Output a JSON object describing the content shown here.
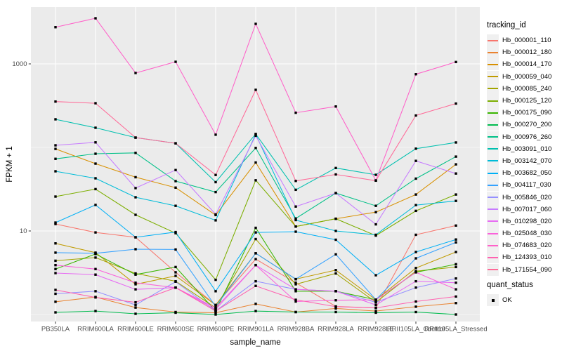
{
  "figure": {
    "panel_bg": "#EBEBEB",
    "grid_color": "#FFFFFF",
    "tick_color": "#333333",
    "tick_text_color": "#4D4D4D",
    "point_color": "#000000"
  },
  "axes": {
    "x": {
      "title": "sample_name"
    },
    "y": {
      "title": "FPKM + 1",
      "scale": "log10",
      "major_ticks": [
        {
          "label": "1000",
          "value": 1000
        },
        {
          "label": "10",
          "value": 10
        }
      ],
      "minor_gridlines": [
        100,
        1
      ]
    }
  },
  "legend": {
    "tracking_title": "tracking_id",
    "quant_title": "quant_status",
    "quant_items": [
      {
        "label": "OK"
      }
    ]
  },
  "chart_data": {
    "type": "line",
    "title": "",
    "xlabel": "sample_name",
    "ylabel": "FPKM + 1",
    "y_scale": "log10",
    "ylim": [
      1,
      4500
    ],
    "y_major_breaks": [
      10,
      1000
    ],
    "y_minor_breaks": [
      1,
      100
    ],
    "grid": true,
    "legend_position": "right",
    "point_shape": "filled-square",
    "quant_status": "OK",
    "categories": [
      "PB350LA",
      "RRIM600LA",
      "RRIM600LE",
      "RRIM600SE",
      "RRIM600PE",
      "RRIM901LA",
      "RRIM928BA",
      "RRIM928LA",
      "RRIM928LE",
      "RRII105LA_Control",
      "RRII105LA_Stressed"
    ],
    "series": [
      {
        "name": "Hb_000001_110",
        "color": "#F8766D",
        "values": [
          12.1,
          9.6,
          8.4,
          3.2,
          1.3,
          4.6,
          2.4,
          1.25,
          1.2,
          9.0,
          11.6
        ]
      },
      {
        "name": "Hb_000012_180",
        "color": "#EA8331",
        "values": [
          1.42,
          1.62,
          1.21,
          1.07,
          1.05,
          1.34,
          1.07,
          1.18,
          1.1,
          1.24,
          1.37
        ]
      },
      {
        "name": "Hb_000014_170",
        "color": "#D89000",
        "values": [
          96,
          64,
          44,
          33,
          15.5,
          66,
          11.3,
          14,
          16.8,
          27.3,
          62.7
        ]
      },
      {
        "name": "Hb_000059_040",
        "color": "#C09B00",
        "values": [
          7.1,
          5.5,
          2.3,
          2.9,
          1.3,
          5.4,
          2.65,
          3.4,
          1.5,
          3.6,
          5.6
        ]
      },
      {
        "name": "Hb_000085_240",
        "color": "#A3A500",
        "values": [
          4.4,
          4.8,
          3.1,
          2.5,
          1.2,
          8.0,
          2.3,
          3.1,
          1.4,
          3.3,
          3.7
        ]
      },
      {
        "name": "Hb_000125_120",
        "color": "#7CAE00",
        "values": [
          25.8,
          31.7,
          15.6,
          9.4,
          2.6,
          40.4,
          11.3,
          14,
          8.8,
          17.4,
          27.3
        ]
      },
      {
        "name": "Hb_000175_090",
        "color": "#39B600",
        "values": [
          3.5,
          5.3,
          3.0,
          3.7,
          1.1,
          10.9,
          1.9,
          1.9,
          1.5,
          3.2,
          4.0
        ]
      },
      {
        "name": "Hb_000270_200",
        "color": "#00BB4E",
        "values": [
          1.06,
          1.1,
          1.02,
          1.05,
          1.0,
          1.1,
          1.07,
          1.07,
          1.05,
          1.07,
          1.0
        ]
      },
      {
        "name": "Hb_000976_260",
        "color": "#00C087",
        "values": [
          73,
          84,
          86,
          39.5,
          29.2,
          98.5,
          14.1,
          28.4,
          20,
          42.3,
          77.6
        ]
      },
      {
        "name": "Hb_003091_010",
        "color": "#00C0AF",
        "values": [
          217,
          172,
          131,
          112,
          38.4,
          145,
          31.1,
          56.7,
          47,
          96.6,
          114.6
        ]
      },
      {
        "name": "Hb_003142_070",
        "color": "#00BCD8",
        "values": [
          51.8,
          42.7,
          25.3,
          20,
          13.4,
          143,
          13.5,
          10,
          9,
          20.4,
          22.9
        ]
      },
      {
        "name": "Hb_003682_050",
        "color": "#00B0F6",
        "values": [
          12.6,
          20.5,
          8.4,
          9.7,
          1.9,
          9.6,
          9.8,
          7.85,
          2.95,
          5.6,
          7.9
        ]
      },
      {
        "name": "Hb_004117_030",
        "color": "#35A2FF",
        "values": [
          5.5,
          5.4,
          6.05,
          6.0,
          1.25,
          5.4,
          2.65,
          5.25,
          1.5,
          4.7,
          7.3
        ]
      },
      {
        "name": "Hb_005846_020",
        "color": "#9590FF",
        "values": [
          1.77,
          1.9,
          1.3,
          2.47,
          1.1,
          2.5,
          2.0,
          1.9,
          1.4,
          2.1,
          2.7
        ]
      },
      {
        "name": "Hb_007017_060",
        "color": "#C77CFF",
        "values": [
          106,
          115,
          32.6,
          53.6,
          15.8,
          138,
          19.6,
          28.4,
          12,
          69,
          48.7
        ]
      },
      {
        "name": "Hb_010298_020",
        "color": "#E76BF3",
        "values": [
          3.13,
          3.0,
          2.0,
          2.1,
          1.15,
          3.9,
          2.0,
          1.9,
          1.3,
          2.5,
          2.4
        ]
      },
      {
        "name": "Hb_025048_030",
        "color": "#FA62DB",
        "values": [
          3.9,
          3.5,
          2.4,
          2.1,
          1.2,
          3.9,
          1.43,
          1.48,
          1.5,
          3.2,
          2.0
        ]
      },
      {
        "name": "Hb_074683_020",
        "color": "#FF61C9",
        "values": [
          2750,
          3515,
          778,
          1059,
          142,
          3013,
          260,
          309,
          40.3,
          752,
          1053
        ]
      },
      {
        "name": "Hb_124393_010",
        "color": "#FF62B0",
        "values": [
          1.97,
          1.6,
          1.4,
          2.1,
          1.1,
          2.2,
          1.5,
          1.24,
          1.2,
          1.43,
          1.64
        ]
      },
      {
        "name": "Hb_171554_090",
        "color": "#FF6A98",
        "values": [
          354,
          338,
          131,
          112,
          46.8,
          489,
          39.7,
          47.5,
          40,
          241,
          335
        ]
      }
    ]
  }
}
